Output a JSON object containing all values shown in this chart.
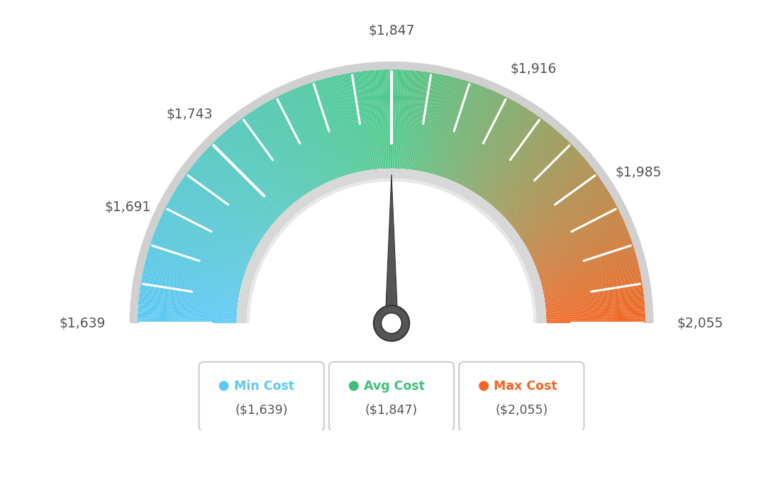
{
  "min_val": 1639,
  "max_val": 2055,
  "avg_val": 1847,
  "label_info": [
    [
      1639,
      "$1,639"
    ],
    [
      1691,
      "$1,691"
    ],
    [
      1743,
      "$1,743"
    ],
    [
      1847,
      "$1,847"
    ],
    [
      1916,
      "$1,916"
    ],
    [
      1985,
      "$1,985"
    ],
    [
      2055,
      "$2,055"
    ]
  ],
  "color_blue": [
    91,
    200,
    245
  ],
  "color_green": [
    77,
    200,
    138
  ],
  "color_orange": [
    242,
    101,
    34
  ],
  "needle_color": "#555555",
  "needle_outline": "#333333",
  "background_color": "#ffffff",
  "legend_min_color": "#5BC8F5",
  "legend_avg_color": "#3DBE79",
  "legend_max_color": "#F26522",
  "legend_value_color": "#555555",
  "border_color": "#cccccc",
  "n_segments": 500,
  "n_ticks": 21,
  "major_tick_vals": [
    1639,
    1691,
    1743,
    1847,
    1916,
    1985,
    2055
  ]
}
